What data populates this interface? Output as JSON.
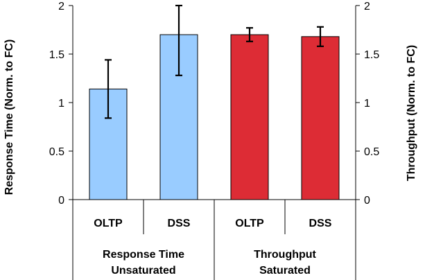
{
  "chart_data": {
    "type": "bar",
    "left_axis": {
      "label": "Response Time (Norm. to FC)",
      "ylim": [
        0,
        2
      ],
      "ticks": [
        "0",
        "0.5",
        "1",
        "1.5",
        "2"
      ]
    },
    "right_axis": {
      "label": "Throughput (Norm. to FC)",
      "ylim": [
        0,
        2
      ],
      "ticks": [
        "0",
        "0.5",
        "1",
        "1.5",
        "2"
      ]
    },
    "groups": [
      {
        "label_line1": "Response Time",
        "label_line2": "Unsaturated",
        "color": "#99ccff",
        "axis": "left",
        "categories": [
          "OLTP",
          "DSS"
        ],
        "values": [
          1.14,
          1.7
        ],
        "err_low": [
          0.84,
          1.28
        ],
        "err_high": [
          1.44,
          2.0
        ]
      },
      {
        "label_line1": "Throughput",
        "label_line2": "Saturated",
        "color": "#dd2c35",
        "axis": "right",
        "categories": [
          "OLTP",
          "DSS"
        ],
        "values": [
          1.7,
          1.68
        ],
        "err_low": [
          1.63,
          1.58
        ],
        "err_high": [
          1.77,
          1.78
        ]
      }
    ],
    "grid": false,
    "legend": "none"
  }
}
